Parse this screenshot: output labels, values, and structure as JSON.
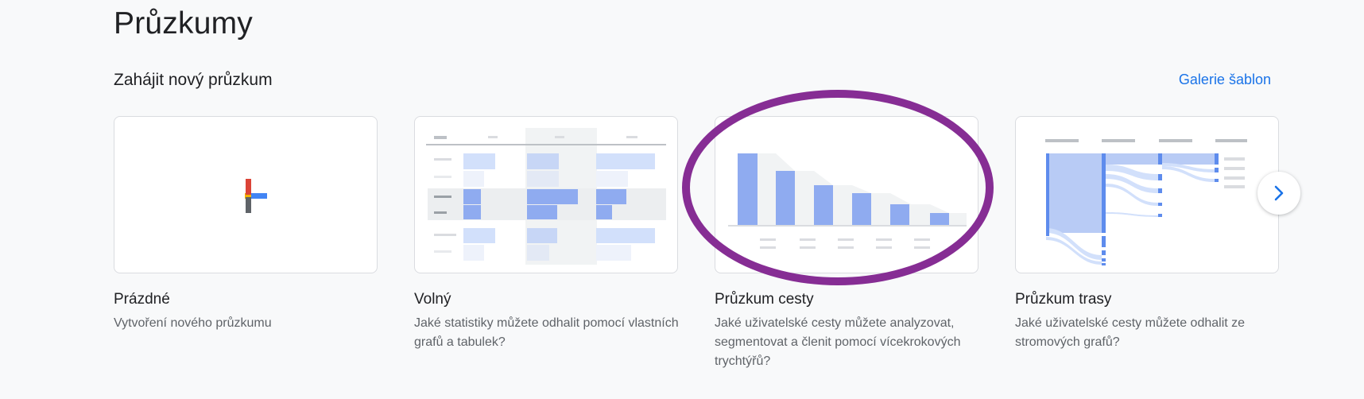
{
  "page": {
    "title": "Průzkumy",
    "section_title": "Zahájit nový průzkum",
    "gallery_link": "Galerie šablon"
  },
  "cards": [
    {
      "label": "Prázdné",
      "description": "Vytvoření nového průzkumu",
      "thumbnail": "plus-icon"
    },
    {
      "label": "Volný",
      "description": "Jaké statistiky můžete odhalit pomocí vlastních grafů a tabulek?",
      "thumbnail": "free-form-table-illustration"
    },
    {
      "label": "Průzkum cesty",
      "description": "Jaké uživatelské cesty můžete analyzovat, segmentovat a členit pomocí vícekrokových trychtýřů?",
      "thumbnail": "funnel-bar-illustration"
    },
    {
      "label": "Průzkum trasy",
      "description": "Jaké uživatelské cesty můžete odhalit ze stromových grafů?",
      "thumbnail": "path-tree-illustration"
    }
  ],
  "next_button_icon": "chevron-right-icon",
  "colors": {
    "accent": "#1a73e8",
    "annotation": "#862d94",
    "bar": "#8fabf0",
    "bar_light": "#d2e0fb"
  }
}
